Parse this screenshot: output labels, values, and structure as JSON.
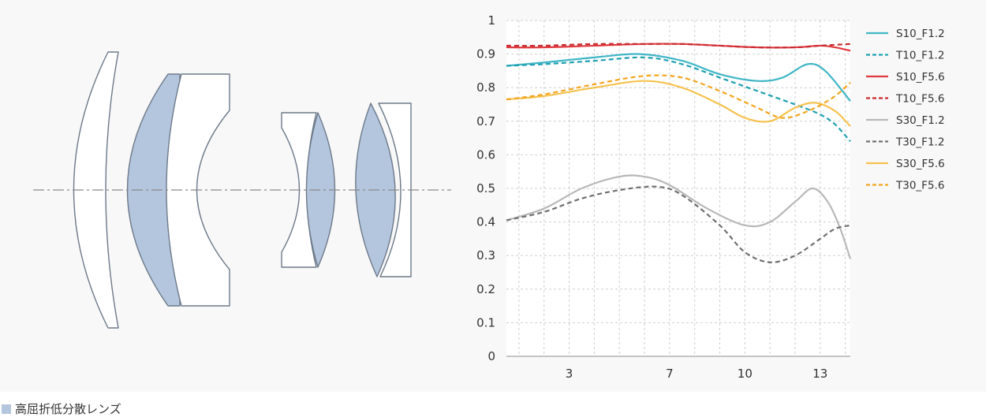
{
  "chart_data": {
    "type": "line",
    "title": "",
    "xlabel": "",
    "ylabel": "",
    "xlim": [
      0.5,
      14.2
    ],
    "ylim": [
      0,
      1
    ],
    "x_ticks": [
      3,
      7,
      10,
      13
    ],
    "y_ticks": [
      0,
      0.1,
      0.2,
      0.3,
      0.4,
      0.5,
      0.6,
      0.7,
      0.8,
      0.9,
      1
    ],
    "grid": true,
    "legend_position": "right",
    "series": [
      {
        "name": "S10_F1.2",
        "color": "#40b6c6",
        "dash": false,
        "points": [
          [
            0.5,
            0.865
          ],
          [
            2,
            0.875
          ],
          [
            4,
            0.89
          ],
          [
            5.8,
            0.9
          ],
          [
            7.5,
            0.88
          ],
          [
            9,
            0.84
          ],
          [
            10.5,
            0.82
          ],
          [
            11.5,
            0.83
          ],
          [
            12.5,
            0.87
          ],
          [
            13.2,
            0.85
          ],
          [
            14.2,
            0.76
          ]
        ]
      },
      {
        "name": "T10_F1.2",
        "color": "#1fa0b0",
        "dash": true,
        "points": [
          [
            0.5,
            0.865
          ],
          [
            2,
            0.87
          ],
          [
            4,
            0.88
          ],
          [
            6,
            0.89
          ],
          [
            7.5,
            0.87
          ],
          [
            9,
            0.83
          ],
          [
            10.5,
            0.79
          ],
          [
            12,
            0.75
          ],
          [
            13,
            0.72
          ],
          [
            13.6,
            0.69
          ],
          [
            14.2,
            0.64
          ]
        ]
      },
      {
        "name": "S10_F5.6",
        "color": "#e03a3e",
        "dash": false,
        "points": [
          [
            0.5,
            0.92
          ],
          [
            2,
            0.92
          ],
          [
            4,
            0.925
          ],
          [
            6,
            0.93
          ],
          [
            7.5,
            0.93
          ],
          [
            9,
            0.925
          ],
          [
            10.5,
            0.92
          ],
          [
            12,
            0.92
          ],
          [
            13,
            0.925
          ],
          [
            13.6,
            0.92
          ],
          [
            14.2,
            0.91
          ]
        ]
      },
      {
        "name": "T10_F5.6",
        "color": "#c82a30",
        "dash": true,
        "points": [
          [
            0.5,
            0.925
          ],
          [
            2,
            0.925
          ],
          [
            4,
            0.93
          ],
          [
            6,
            0.93
          ],
          [
            7.5,
            0.93
          ],
          [
            9,
            0.925
          ],
          [
            10.5,
            0.92
          ],
          [
            12,
            0.92
          ],
          [
            13,
            0.925
          ],
          [
            14.2,
            0.93
          ]
        ]
      },
      {
        "name": "S30_F1.2",
        "color": "#b8b8b8",
        "dash": false,
        "points": [
          [
            0.5,
            0.405
          ],
          [
            2,
            0.44
          ],
          [
            3.5,
            0.5
          ],
          [
            5,
            0.535
          ],
          [
            6,
            0.535
          ],
          [
            7,
            0.51
          ],
          [
            8.5,
            0.44
          ],
          [
            10,
            0.39
          ],
          [
            11,
            0.4
          ],
          [
            12,
            0.46
          ],
          [
            12.7,
            0.5
          ],
          [
            13.3,
            0.46
          ],
          [
            13.8,
            0.38
          ],
          [
            14.2,
            0.29
          ]
        ]
      },
      {
        "name": "T30_F1.2",
        "color": "#707070",
        "dash": true,
        "points": [
          [
            0.5,
            0.405
          ],
          [
            2,
            0.43
          ],
          [
            3.5,
            0.47
          ],
          [
            5,
            0.495
          ],
          [
            6.5,
            0.505
          ],
          [
            7.5,
            0.48
          ],
          [
            9,
            0.39
          ],
          [
            10,
            0.31
          ],
          [
            11,
            0.28
          ],
          [
            12,
            0.3
          ],
          [
            13,
            0.35
          ],
          [
            13.6,
            0.38
          ],
          [
            14.2,
            0.39
          ]
        ]
      },
      {
        "name": "S30_F5.6",
        "color": "#f6c24f",
        "dash": false,
        "points": [
          [
            0.5,
            0.765
          ],
          [
            2,
            0.775
          ],
          [
            4,
            0.8
          ],
          [
            6,
            0.82
          ],
          [
            7.5,
            0.8
          ],
          [
            9,
            0.75
          ],
          [
            10,
            0.71
          ],
          [
            11,
            0.7
          ],
          [
            12,
            0.74
          ],
          [
            12.8,
            0.755
          ],
          [
            13.6,
            0.73
          ],
          [
            14.2,
            0.685
          ]
        ]
      },
      {
        "name": "T30_F5.6",
        "color": "#f3a520",
        "dash": true,
        "points": [
          [
            0.5,
            0.765
          ],
          [
            2,
            0.78
          ],
          [
            4,
            0.81
          ],
          [
            6,
            0.835
          ],
          [
            7.5,
            0.83
          ],
          [
            9,
            0.79
          ],
          [
            10.5,
            0.74
          ],
          [
            11.5,
            0.71
          ],
          [
            12.5,
            0.73
          ],
          [
            13.5,
            0.77
          ],
          [
            14.2,
            0.815
          ]
        ]
      }
    ]
  },
  "legend_key": {
    "label": "高屈折低分散レンズ",
    "color": "#b4c6de"
  },
  "lens_colors": {
    "plain_fill": "#ffffff",
    "special_fill": "#b4c6de",
    "outline": "#6d7a89",
    "axis_line": "#8a8a8a"
  }
}
